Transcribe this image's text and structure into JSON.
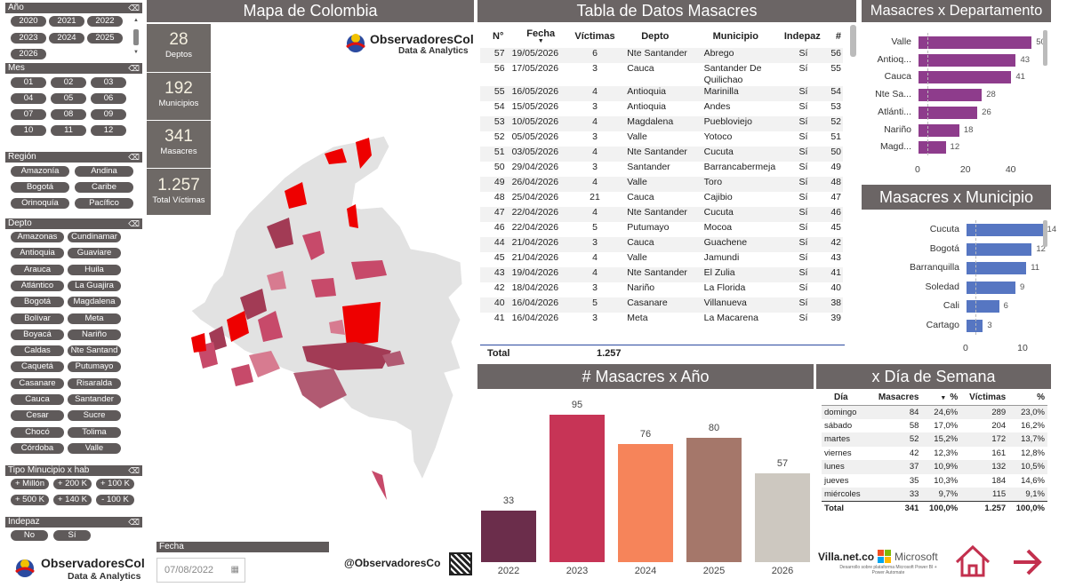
{
  "colors": {
    "dark": "#5f5a5a",
    "purple": "#8e3c8c",
    "blue": "#5676c2",
    "red": "#ee0000"
  },
  "filters": {
    "anio": {
      "label": "Año",
      "items": [
        "2020",
        "2021",
        "2022",
        "2023",
        "2024",
        "2025",
        "2026"
      ]
    },
    "mes": {
      "label": "Mes",
      "items": [
        "01",
        "02",
        "03",
        "04",
        "05",
        "06",
        "07",
        "08",
        "09",
        "10",
        "11",
        "12"
      ]
    },
    "region": {
      "label": "Región",
      "items": [
        "Amazonía",
        "Andina",
        "Bogotá",
        "Caribe",
        "Orinoquía",
        "Pacífico"
      ]
    },
    "depto": {
      "label": "Depto",
      "items": [
        "Amazonas",
        "Cundinamar",
        "Antioquia",
        "Guaviare",
        "Arauca",
        "Huila",
        "Atlántico",
        "La Guajira",
        "Bogotá",
        "Magdalena",
        "Bolívar",
        "Meta",
        "Boyacá",
        "Nariño",
        "Caldas",
        "Nte Santand",
        "Caquetá",
        "Putumayo",
        "Casanare",
        "Risaralda",
        "Cauca",
        "Santander",
        "Cesar",
        "Sucre",
        "Chocó",
        "Tolima",
        "Córdoba",
        "Valle"
      ]
    },
    "tipo": {
      "label": "Tipo Minucipio x hab",
      "items": [
        "+ Millón",
        "+ 200 K",
        "+ 100 K",
        "+ 500 K",
        "+ 140 K",
        "- 100 K"
      ]
    },
    "indepaz": {
      "label": "Indepaz",
      "items": [
        "No",
        "Sí"
      ]
    }
  },
  "kpis": [
    {
      "value": "28",
      "label": "Deptos"
    },
    {
      "value": "192",
      "label": "Municipios"
    },
    {
      "value": "341",
      "label": "Masacres"
    },
    {
      "value": "1.257",
      "label": "Total Víctimas"
    }
  ],
  "map": {
    "title": "Mapa de Colombia",
    "brand": "ObservadoresCol",
    "brand_sub": "Data & Analytics",
    "handle": "@ObservadoresCo",
    "fecha_label": "Fecha",
    "fecha_value": "07/08/2022"
  },
  "table": {
    "title": "Tabla de Datos Masacres",
    "headers": [
      "N°",
      "Fecha",
      "Víctimas",
      "Depto",
      "Municipio",
      "Indepaz",
      "#"
    ],
    "rows": [
      [
        "57",
        "19/05/2026",
        "6",
        "Nte Santander",
        "Abrego",
        "Sí",
        "56"
      ],
      [
        "56",
        "17/05/2026",
        "3",
        "Cauca",
        "Santander De Quilichao",
        "Sí",
        "55"
      ],
      [
        "55",
        "16/05/2026",
        "4",
        "Antioquia",
        "Marinilla",
        "Sí",
        "54"
      ],
      [
        "54",
        "15/05/2026",
        "3",
        "Antioquia",
        "Andes",
        "Sí",
        "53"
      ],
      [
        "53",
        "10/05/2026",
        "4",
        "Magdalena",
        "Puebloviejo",
        "Sí",
        "52"
      ],
      [
        "52",
        "05/05/2026",
        "3",
        "Valle",
        "Yotoco",
        "Sí",
        "51"
      ],
      [
        "51",
        "03/05/2026",
        "4",
        "Nte Santander",
        "Cucuta",
        "Sí",
        "50"
      ],
      [
        "50",
        "29/04/2026",
        "3",
        "Santander",
        "Barrancabermeja",
        "Sí",
        "49"
      ],
      [
        "49",
        "26/04/2026",
        "4",
        "Valle",
        "Toro",
        "Sí",
        "48"
      ],
      [
        "48",
        "25/04/2026",
        "21",
        "Cauca",
        "Cajibio",
        "Sí",
        "47"
      ],
      [
        "47",
        "22/04/2026",
        "4",
        "Nte Santander",
        "Cucuta",
        "Sí",
        "46"
      ],
      [
        "46",
        "22/04/2026",
        "5",
        "Putumayo",
        "Mocoa",
        "Sí",
        "45"
      ],
      [
        "44",
        "21/04/2026",
        "3",
        "Cauca",
        "Guachene",
        "Sí",
        "42"
      ],
      [
        "45",
        "21/04/2026",
        "4",
        "Valle",
        "Jamundi",
        "Sí",
        "43"
      ],
      [
        "43",
        "19/04/2026",
        "4",
        "Nte Santander",
        "El Zulia",
        "Sí",
        "41"
      ],
      [
        "42",
        "18/04/2026",
        "3",
        "Nariño",
        "La Florida",
        "Sí",
        "40"
      ],
      [
        "40",
        "16/04/2026",
        "5",
        "Casanare",
        "Villanueva",
        "Sí",
        "38"
      ],
      [
        "41",
        "16/04/2026",
        "3",
        "Meta",
        "La Macarena",
        "Sí",
        "39"
      ]
    ],
    "total_label": "Total",
    "total_value": "1.257"
  },
  "chart_data": [
    {
      "type": "bar",
      "orientation": "horizontal",
      "title": "Masacres x Departamento",
      "categories": [
        "Valle",
        "Antioq...",
        "Cauca",
        "Nte Sa...",
        "Atlánti...",
        "Nariño",
        "Magd..."
      ],
      "values": [
        50,
        43,
        41,
        28,
        26,
        18,
        12
      ],
      "xticks": [
        "0",
        "20",
        "40"
      ],
      "xlim": [
        0,
        55
      ]
    },
    {
      "type": "bar",
      "orientation": "horizontal",
      "title": "Masacres x Municipio",
      "categories": [
        "Cucuta",
        "Bogotá",
        "Barranquilla",
        "Soledad",
        "Cali",
        "Cartago"
      ],
      "values": [
        14,
        12,
        11,
        9,
        6,
        3
      ],
      "xticks": [
        "0",
        "10"
      ],
      "xlim": [
        0,
        18
      ]
    },
    {
      "type": "bar",
      "title": "# Masacres x Año",
      "categories": [
        "2022",
        "2023",
        "2024",
        "2025",
        "2026"
      ],
      "values": [
        33,
        95,
        76,
        80,
        57
      ],
      "colors": [
        "#6b2d4b",
        "#c73456",
        "#f6845a",
        "#a5776a",
        "#cdc8c0"
      ],
      "ylim": [
        0,
        100
      ]
    }
  ],
  "dia": {
    "title": "x Día de Semana",
    "headers": [
      "Día",
      "Masacres",
      "%",
      "Víctimas",
      "%"
    ],
    "rows": [
      [
        "domingo",
        "84",
        "24,6%",
        "289",
        "23,0%"
      ],
      [
        "sábado",
        "58",
        "17,0%",
        "204",
        "16,2%"
      ],
      [
        "martes",
        "52",
        "15,2%",
        "172",
        "13,7%"
      ],
      [
        "viernes",
        "42",
        "12,3%",
        "161",
        "12,8%"
      ],
      [
        "lunes",
        "37",
        "10,9%",
        "132",
        "10,5%"
      ],
      [
        "jueves",
        "35",
        "10,3%",
        "184",
        "14,6%"
      ],
      [
        "miércoles",
        "33",
        "9,7%",
        "115",
        "9,1%"
      ]
    ],
    "total": [
      "Total",
      "341",
      "100,0%",
      "1.257",
      "100,0%"
    ]
  },
  "footer": {
    "villa": "Villa.net.co",
    "ms": "Microsoft",
    "ms_sub": "Desarrollo sobre plataforma Microsoft Power BI + Power Automate"
  }
}
